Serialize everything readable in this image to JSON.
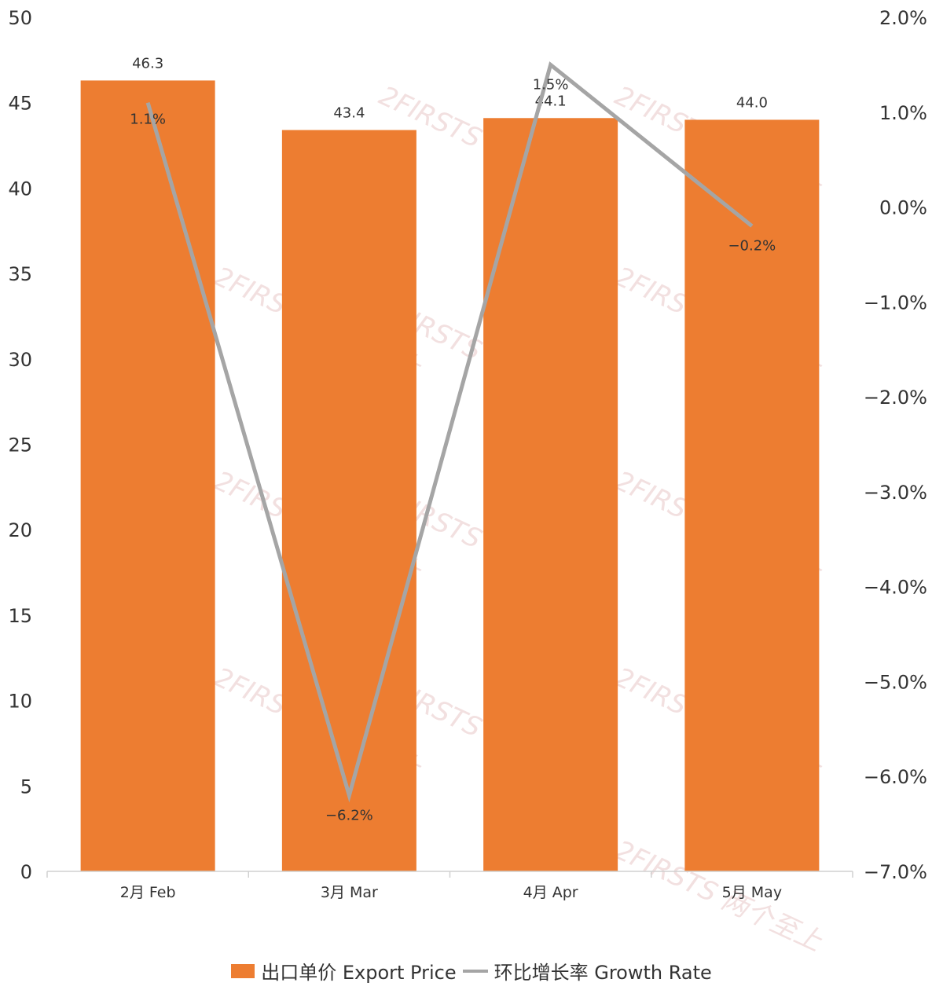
{
  "chart_data": {
    "type": "bar",
    "categories": [
      "2月 Feb",
      "3月 Mar",
      "4月 Apr",
      "5月 May"
    ],
    "series": [
      {
        "name": "出口单价 Export Price",
        "type": "bar",
        "axis": "left",
        "values": [
          46.3,
          43.4,
          44.1,
          44.0
        ],
        "labels": [
          "46.3",
          "43.4",
          "44.1",
          "44.0"
        ],
        "color": "#ED7D31"
      },
      {
        "name": "环比增长率 Growth Rate",
        "type": "line",
        "axis": "right",
        "values": [
          1.1,
          -6.2,
          1.5,
          -0.2
        ],
        "labels": [
          "1.1%",
          "−6.2%",
          "1.5%",
          "−0.2%"
        ],
        "color": "#A5A5A5"
      }
    ],
    "y_left": {
      "ylim": [
        0,
        50
      ],
      "ticks": [
        0,
        5,
        10,
        15,
        20,
        25,
        30,
        35,
        40,
        45,
        50
      ],
      "tick_labels": [
        "0",
        "5",
        "10",
        "15",
        "20",
        "25",
        "30",
        "35",
        "40",
        "45",
        "50"
      ]
    },
    "y_right": {
      "ylim": [
        -7.0,
        2.0
      ],
      "ticks": [
        2.0,
        1.0,
        0.0,
        -1.0,
        -2.0,
        -3.0,
        -4.0,
        -5.0,
        -6.0,
        -7.0
      ],
      "tick_labels": [
        "2.0%",
        "1.0%",
        "0.0%",
        "−1.0%",
        "−2.0%",
        "−3.0%",
        "−4.0%",
        "−5.0%",
        "−6.0%",
        "−7.0%"
      ]
    },
    "grid": false,
    "legend_position": "bottom",
    "watermark": "2FIRSTS 两个至上"
  },
  "legend": {
    "bar_label": "出口单价 Export Price",
    "line_label": "环比增长率 Growth Rate"
  }
}
